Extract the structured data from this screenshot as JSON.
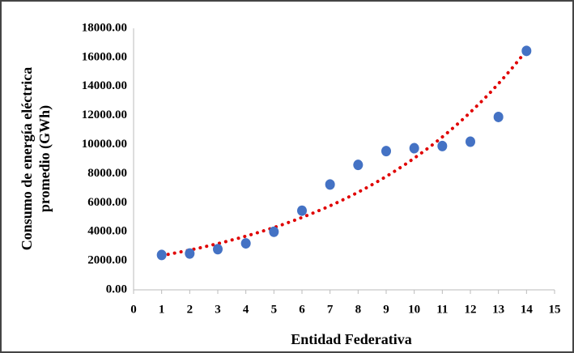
{
  "chart_data": {
    "type": "scatter",
    "ylabel": [
      "Consumo de energía eléctrica",
      "promedio (GWh)"
    ],
    "xlabel": "Entidad Federativa",
    "series": [
      {
        "color": "#4472c4",
        "x": [
          1,
          2,
          3,
          4,
          5,
          6,
          7,
          8,
          9,
          10,
          11,
          12,
          13,
          14
        ],
        "values": [
          2400,
          2500,
          2800,
          3200,
          4000,
          5450,
          7250,
          8600,
          9550,
          9750,
          9900,
          10200,
          11900,
          16450
        ]
      }
    ],
    "trendline": {
      "type": "exponential",
      "color": "#e00000"
    },
    "xlim": [
      0,
      15
    ],
    "xticks": [
      0,
      1,
      2,
      3,
      4,
      5,
      6,
      7,
      8,
      9,
      10,
      11,
      12,
      13,
      14,
      15
    ],
    "ylim": [
      0,
      18000
    ],
    "yticks": [
      {
        "value": 0,
        "label": "0.00"
      },
      {
        "value": 2000,
        "label": "2000.00"
      },
      {
        "value": 4000,
        "label": "4000.00"
      },
      {
        "value": 6000,
        "label": "6000.00"
      },
      {
        "value": 8000,
        "label": "8000.00"
      },
      {
        "value": 10000,
        "label": "10000.00"
      },
      {
        "value": 12000,
        "label": "12000.00"
      },
      {
        "value": 14000,
        "label": "14000.00"
      },
      {
        "value": 16000,
        "label": "16000.00"
      },
      {
        "value": 18000,
        "label": "18000.00"
      }
    ],
    "grid": false
  }
}
